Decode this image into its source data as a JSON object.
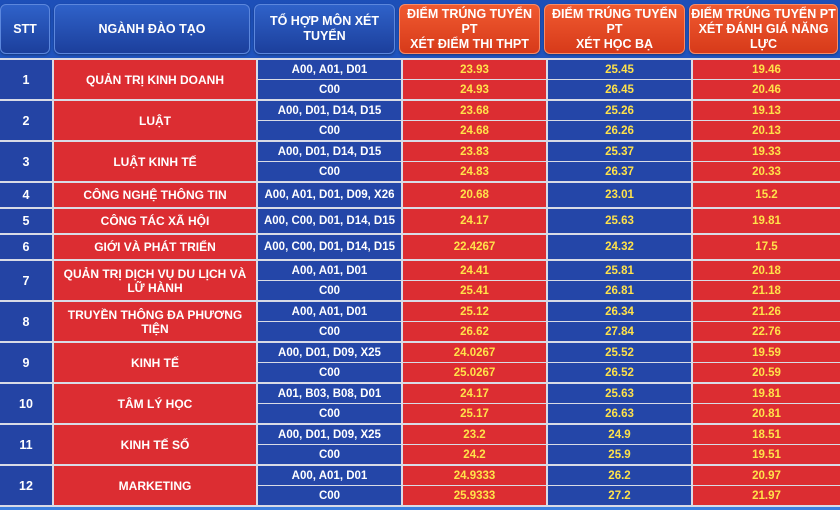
{
  "header": {
    "stt": "STT",
    "major": "NGÀNH ĐÀO TẠO",
    "combo": "TỔ HỢP MÔN XÉT TUYỂN",
    "score_thpt": [
      "ĐIỂM TRÚNG TUYỂN PT",
      "XÉT ĐIỂM THI THPT"
    ],
    "score_hocba": [
      "ĐIỂM TRÚNG TUYỂN PT",
      "XÉT HỌC BẠ"
    ],
    "score_dgnl": [
      "ĐIỂM TRÚNG TUYỂN PT",
      "XÉT ĐÁNH GIÁ NĂNG LỰC"
    ]
  },
  "groups": [
    {
      "stt": "1",
      "major": "QUẢN TRỊ KINH DOANH",
      "rows": [
        {
          "combo": "A00, A01, D01",
          "s1": "23.93",
          "s2": "25.45",
          "s3": "19.46"
        },
        {
          "combo": "C00",
          "s1": "24.93",
          "s2": "26.45",
          "s3": "20.46"
        }
      ]
    },
    {
      "stt": "2",
      "major": "LUẬT",
      "rows": [
        {
          "combo": "A00, D01, D14, D15",
          "s1": "23.68",
          "s2": "25.26",
          "s3": "19.13"
        },
        {
          "combo": "C00",
          "s1": "24.68",
          "s2": "26.26",
          "s3": "20.13"
        }
      ]
    },
    {
      "stt": "3",
      "major": "LUẬT KINH TẾ",
      "rows": [
        {
          "combo": "A00, D01, D14, D15",
          "s1": "23.83",
          "s2": "25.37",
          "s3": "19.33"
        },
        {
          "combo": "C00",
          "s1": "24.83",
          "s2": "26.37",
          "s3": "20.33"
        }
      ]
    },
    {
      "stt": "4",
      "major": "CÔNG NGHỆ THÔNG TIN",
      "rows": [
        {
          "combo": "A00, A01, D01, D09, X26",
          "s1": "20.68",
          "s2": "23.01",
          "s3": "15.2"
        }
      ]
    },
    {
      "stt": "5",
      "major": "CÔNG TÁC XÃ HỘI",
      "rows": [
        {
          "combo": "A00, C00, D01, D14, D15",
          "s1": "24.17",
          "s2": "25.63",
          "s3": "19.81"
        }
      ]
    },
    {
      "stt": "6",
      "major": "GIỚI VÀ PHÁT TRIỂN",
      "rows": [
        {
          "combo": "A00, C00, D01, D14, D15",
          "s1": "22.4267",
          "s2": "24.32",
          "s3": "17.5"
        }
      ]
    },
    {
      "stt": "7",
      "major": "QUẢN TRỊ DỊCH VỤ DU LỊCH VÀ LỮ HÀNH",
      "rows": [
        {
          "combo": "A00, A01, D01",
          "s1": "24.41",
          "s2": "25.81",
          "s3": "20.18"
        },
        {
          "combo": "C00",
          "s1": "25.41",
          "s2": "26.81",
          "s3": "21.18"
        }
      ]
    },
    {
      "stt": "8",
      "major": "TRUYỀN THÔNG ĐA PHƯƠNG TIỆN",
      "rows": [
        {
          "combo": "A00, A01, D01",
          "s1": "25.12",
          "s2": "26.34",
          "s3": "21.26"
        },
        {
          "combo": "C00",
          "s1": "26.62",
          "s2": "27.84",
          "s3": "22.76"
        }
      ]
    },
    {
      "stt": "9",
      "major": "KINH TẾ",
      "rows": [
        {
          "combo": "A00, D01, D09, X25",
          "s1": "24.0267",
          "s2": "25.52",
          "s3": "19.59"
        },
        {
          "combo": "C00",
          "s1": "25.0267",
          "s2": "26.52",
          "s3": "20.59"
        }
      ]
    },
    {
      "stt": "10",
      "major": "TÂM LÝ HỌC",
      "rows": [
        {
          "combo": "A01, B03, B08, D01",
          "s1": "24.17",
          "s2": "25.63",
          "s3": "19.81"
        },
        {
          "combo": "C00",
          "s1": "25.17",
          "s2": "26.63",
          "s3": "20.81"
        }
      ]
    },
    {
      "stt": "11",
      "major": "KINH TẾ SỐ",
      "rows": [
        {
          "combo": "A00, D01, D09, X25",
          "s1": "23.2",
          "s2": "24.9",
          "s3": "18.51"
        },
        {
          "combo": "C00",
          "s1": "24.2",
          "s2": "25.9",
          "s3": "19.51"
        }
      ]
    },
    {
      "stt": "12",
      "major": "MARKETING",
      "rows": [
        {
          "combo": "A00, A01, D01",
          "s1": "24.9333",
          "s2": "26.2",
          "s3": "20.97"
        },
        {
          "combo": "C00",
          "s1": "25.9333",
          "s2": "27.2",
          "s3": "21.97"
        }
      ]
    }
  ]
}
